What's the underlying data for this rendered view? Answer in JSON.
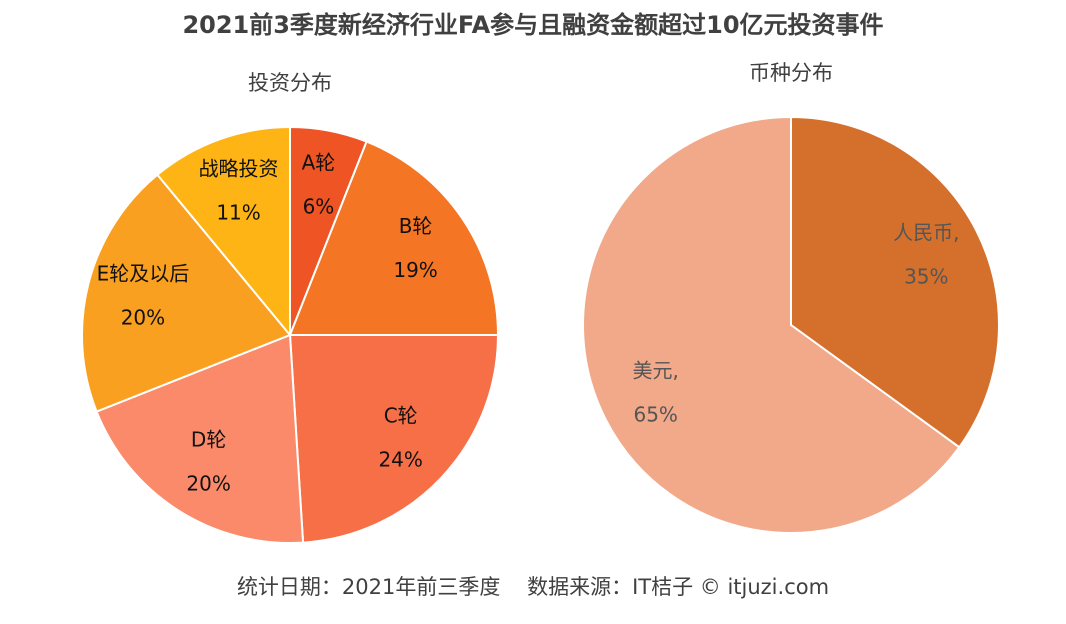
{
  "title": "2021前3季度新经济行业FA参与且融资金额超过10亿元投资事件",
  "footer": "统计日期：2021年前三季度    数据来源：IT桔子 © itjuzi.com",
  "chart_data": [
    {
      "type": "pie",
      "title": "投资分布",
      "categories": [
        "A轮",
        "B轮",
        "C轮",
        "D轮",
        "E轮及以后",
        "战略投资"
      ],
      "values": [
        6,
        19,
        24,
        20,
        20,
        11
      ],
      "value_labels": [
        "6%",
        "19%",
        "24%",
        "20%",
        "20%",
        "11%"
      ],
      "colors": [
        "#ee5424",
        "#f47523",
        "#f76f47",
        "#fa8a6a",
        "#f9a020",
        "#fdb414"
      ],
      "label_color": "#111111"
    },
    {
      "type": "pie",
      "title": "币种分布",
      "categories": [
        "人民币,",
        "美元,"
      ],
      "values": [
        35,
        65
      ],
      "value_labels": [
        "35%",
        "65%"
      ],
      "colors": [
        "#d4702c",
        "#f1a98a"
      ],
      "label_color": "#555555"
    }
  ]
}
